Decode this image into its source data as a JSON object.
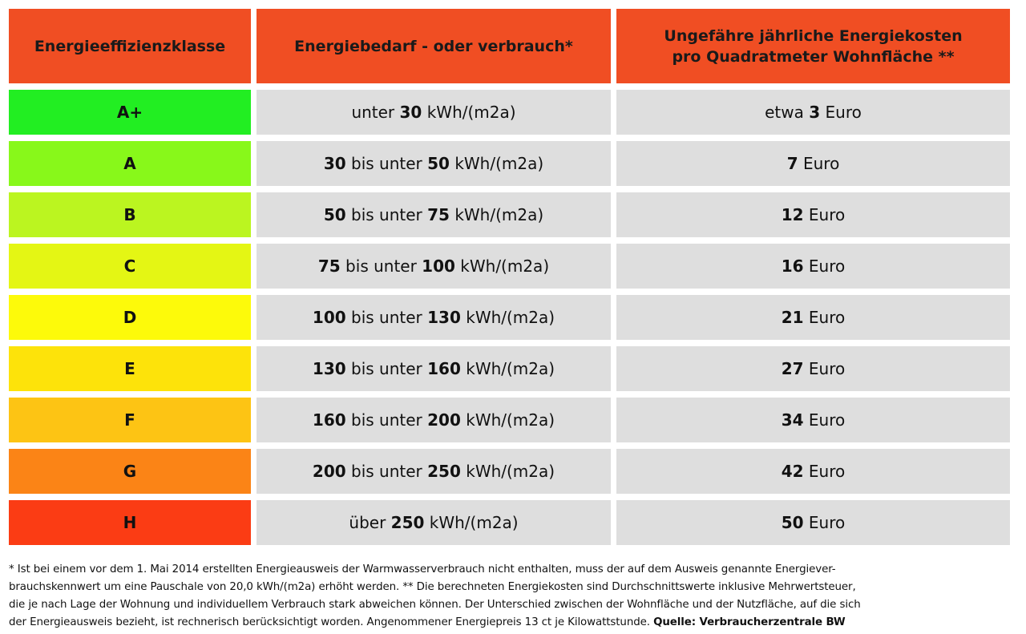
{
  "header": {
    "col1": "Energieeffizienzklasse",
    "col2": "Energiebedarf - oder verbrauch*",
    "col3_line1": "Ungefähre jährliche Energiekosten",
    "col3_line2": "pro Quadratmeter Wohnfläche **"
  },
  "rows": [
    {
      "class": "A+",
      "color": "#22ee22",
      "d_pre": "unter ",
      "d_a": "30",
      "d_mid": "",
      "d_b": "",
      "unit": " kWh/(m2a)",
      "c_pre": "etwa ",
      "cost": "3",
      "c_unit": " Euro"
    },
    {
      "class": "A",
      "color": "#88f81a",
      "d_pre": "",
      "d_a": "30",
      "d_mid": " bis unter ",
      "d_b": "50",
      "unit": " kWh/(m2a)",
      "c_pre": "",
      "cost": "7",
      "c_unit": " Euro"
    },
    {
      "class": "B",
      "color": "#bbf520",
      "d_pre": "",
      "d_a": "50",
      "d_mid": " bis unter ",
      "d_b": "75",
      "unit": " kWh/(m2a)",
      "c_pre": "",
      "cost": "12",
      "c_unit": " Euro"
    },
    {
      "class": "C",
      "color": "#e4f614",
      "d_pre": "",
      "d_a": "75",
      "d_mid": " bis unter ",
      "d_b": "100",
      "unit": " kWh/(m2a)",
      "c_pre": "",
      "cost": "16",
      "c_unit": " Euro"
    },
    {
      "class": "D",
      "color": "#fdfa0a",
      "d_pre": "",
      "d_a": "100",
      "d_mid": " bis unter ",
      "d_b": "130",
      "unit": " kWh/(m2a)",
      "c_pre": "",
      "cost": "21",
      "c_unit": " Euro"
    },
    {
      "class": "E",
      "color": "#fde30a",
      "d_pre": "",
      "d_a": "130",
      "d_mid": " bis unter ",
      "d_b": "160",
      "unit": " kWh/(m2a)",
      "c_pre": "",
      "cost": "27",
      "c_unit": " Euro"
    },
    {
      "class": "F",
      "color": "#fdc414",
      "d_pre": "",
      "d_a": "160",
      "d_mid": " bis unter ",
      "d_b": "200",
      "unit": " kWh/(m2a)",
      "c_pre": "",
      "cost": "34",
      "c_unit": " Euro"
    },
    {
      "class": "G",
      "color": "#fb8416",
      "d_pre": "",
      "d_a": "200",
      "d_mid": " bis unter ",
      "d_b": "250",
      "unit": " kWh/(m2a)",
      "c_pre": "",
      "cost": "42",
      "c_unit": " Euro"
    },
    {
      "class": "H",
      "color": "#fb3c14",
      "d_pre": "über ",
      "d_a": "250",
      "d_mid": "",
      "d_b": "",
      "unit": " kWh/(m2a)",
      "c_pre": "",
      "cost": "50",
      "c_unit": " Euro"
    }
  ],
  "footnote": {
    "line1": "* Ist bei einem vor dem 1. Mai 2014 erstellten Energieausweis der Warmwasserverbrauch nicht enthalten, muss der auf dem Ausweis genannte Energiever-",
    "line2": "brauchskennwert um eine Pauschale von 20,0 kWh/(m2a) erhöht werden. ** Die berechneten Energiekosten sind Durchschnittswerte inklusive Mehrwertsteuer,",
    "line3": "die je nach Lage der Wohnung und individuellem Verbrauch stark abweichen können. Der Unterschied zwischen der Wohnfläche und der Nutzfläche, auf die sich",
    "line4": "der Energieausweis bezieht, ist rechnerisch berücksichtigt worden. Angenommener Energiepreis 13 ct je Kilowattstunde. ",
    "source": "Quelle: Verbraucherzentrale BW"
  }
}
